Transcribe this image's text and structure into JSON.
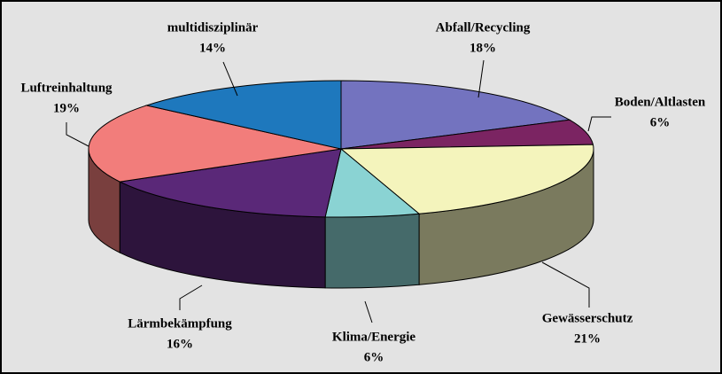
{
  "chart_data": {
    "type": "pie3d",
    "categories": [
      "Abfall/Recycling",
      "Boden/Altlasten",
      "Gewässerschutz",
      "Klima/Energie",
      "Lärmbekämpfung",
      "Luftreinhaltung",
      "multidisziplinär"
    ],
    "values": [
      18,
      6,
      21,
      6,
      16,
      19,
      14
    ],
    "value_labels": [
      "18%",
      "6%",
      "21%",
      "6%",
      "16%",
      "19%",
      "14%"
    ],
    "colors": [
      "#7373bf",
      "#7b2462",
      "#f4f4bc",
      "#8ad3d3",
      "#5a2878",
      "#f27d7b",
      "#1e78bd"
    ]
  }
}
